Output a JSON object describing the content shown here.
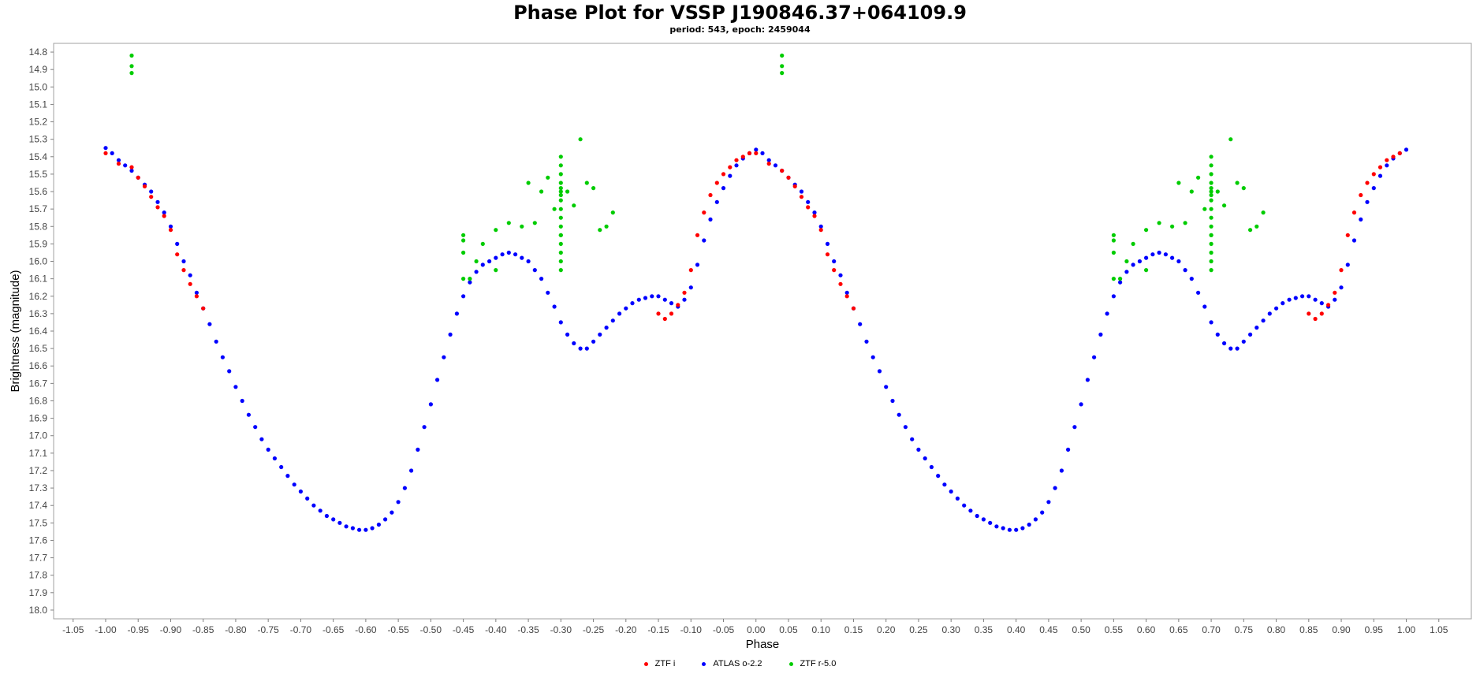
{
  "chart_data": {
    "type": "scatter",
    "title": "Phase Plot for VSSP J190846.37+064109.9",
    "subtitle": "period: 543, epoch: 2459044",
    "xlabel": "Phase",
    "ylabel": "Brightness (magnitude)",
    "xlim": [
      -1.08,
      1.1
    ],
    "ylim": [
      14.75,
      18.05
    ],
    "y_inverted": true,
    "grid": false,
    "legend_position": "bottom",
    "x_ticks": [
      "-1.05",
      "-1.00",
      "-0.95",
      "-0.90",
      "-0.85",
      "-0.80",
      "-0.75",
      "-0.70",
      "-0.65",
      "-0.60",
      "-0.55",
      "-0.50",
      "-0.45",
      "-0.40",
      "-0.35",
      "-0.30",
      "-0.25",
      "-0.20",
      "-0.15",
      "-0.10",
      "-0.05",
      "0.00",
      "0.05",
      "0.10",
      "0.15",
      "0.20",
      "0.25",
      "0.30",
      "0.35",
      "0.40",
      "0.45",
      "0.50",
      "0.55",
      "0.60",
      "0.65",
      "0.70",
      "0.75",
      "0.80",
      "0.85",
      "0.90",
      "0.95",
      "1.00",
      "1.05"
    ],
    "y_ticks": [
      "14.8",
      "14.9",
      "15.0",
      "15.1",
      "15.2",
      "15.3",
      "15.4",
      "15.5",
      "15.6",
      "15.7",
      "15.8",
      "15.9",
      "16.0",
      "16.1",
      "16.2",
      "16.3",
      "16.4",
      "16.5",
      "16.6",
      "16.7",
      "16.8",
      "16.9",
      "17.0",
      "17.1",
      "17.2",
      "17.3",
      "17.4",
      "17.5",
      "17.6",
      "17.7",
      "17.8",
      "17.9",
      "18.0"
    ],
    "series": [
      {
        "name": "ZTF i",
        "color": "#ff0000",
        "x": [
          -1.0,
          -0.98,
          -0.96,
          -0.95,
          -0.94,
          -0.93,
          -0.92,
          -0.91,
          -0.9,
          -0.89,
          -0.88,
          -0.87,
          -0.86,
          -0.85,
          0.0,
          0.02,
          0.04,
          0.05,
          0.06,
          0.07,
          0.08,
          0.09,
          0.1,
          0.11,
          0.12,
          0.13,
          0.14,
          0.15,
          -0.15,
          -0.14,
          -0.13,
          -0.12,
          -0.11,
          -0.1,
          -0.09,
          -0.08,
          -0.07,
          -0.06,
          -0.05,
          -0.04,
          -0.03,
          -0.02,
          -0.01,
          0.85,
          0.86,
          0.87,
          0.88,
          0.89,
          0.9,
          0.91,
          0.92,
          0.93,
          0.94,
          0.95,
          0.96,
          0.97,
          0.98,
          0.99
        ],
        "y": [
          15.38,
          15.44,
          15.46,
          15.52,
          15.57,
          15.63,
          15.69,
          15.74,
          15.82,
          15.96,
          16.05,
          16.13,
          16.2,
          16.27,
          15.38,
          15.44,
          15.48,
          15.52,
          15.57,
          15.63,
          15.69,
          15.74,
          15.82,
          15.96,
          16.05,
          16.13,
          16.2,
          16.27,
          16.3,
          16.33,
          16.3,
          16.25,
          16.18,
          16.05,
          15.85,
          15.72,
          15.62,
          15.55,
          15.5,
          15.46,
          15.42,
          15.4,
          15.38,
          16.3,
          16.33,
          16.3,
          16.25,
          16.18,
          16.05,
          15.85,
          15.72,
          15.62,
          15.55,
          15.5,
          15.46,
          15.42,
          15.4,
          15.38
        ]
      },
      {
        "name": "ATLAS o-2.2",
        "color": "#0000ff",
        "x": [
          -1.0,
          -0.99,
          -0.98,
          -0.97,
          -0.96,
          -0.95,
          -0.94,
          -0.93,
          -0.92,
          -0.91,
          -0.9,
          -0.89,
          -0.88,
          -0.87,
          -0.86,
          -0.85,
          -0.84,
          -0.83,
          -0.82,
          -0.81,
          -0.8,
          -0.79,
          -0.78,
          -0.77,
          -0.76,
          -0.75,
          -0.74,
          -0.73,
          -0.72,
          -0.71,
          -0.7,
          -0.69,
          -0.68,
          -0.67,
          -0.66,
          -0.65,
          -0.64,
          -0.63,
          -0.62,
          -0.61,
          -0.6,
          -0.59,
          -0.58,
          -0.57,
          -0.56,
          -0.55,
          -0.54,
          -0.53,
          -0.52,
          -0.51,
          -0.5,
          -0.49,
          -0.48,
          -0.47,
          -0.46,
          -0.45,
          -0.44,
          -0.43,
          -0.42,
          -0.41,
          -0.4,
          -0.39,
          -0.38,
          -0.37,
          -0.36,
          -0.35,
          -0.34,
          -0.33,
          -0.32,
          -0.31,
          -0.3,
          -0.29,
          -0.28,
          -0.27,
          -0.26,
          -0.25,
          -0.24,
          -0.23,
          -0.22,
          -0.21,
          -0.2,
          -0.19,
          -0.18,
          -0.17,
          -0.16,
          -0.15,
          -0.14,
          -0.13,
          -0.12,
          -0.11,
          -0.1,
          -0.09,
          -0.08,
          -0.07,
          -0.06,
          -0.05,
          -0.04,
          -0.03,
          -0.02,
          -0.01,
          0.0,
          0.01,
          0.02,
          0.03,
          0.04,
          0.05,
          0.06,
          0.07,
          0.08,
          0.09,
          0.1,
          0.11,
          0.12,
          0.13,
          0.14,
          0.15,
          0.16,
          0.17,
          0.18,
          0.19,
          0.2,
          0.21,
          0.22,
          0.23,
          0.24,
          0.25,
          0.26,
          0.27,
          0.28,
          0.29,
          0.3,
          0.31,
          0.32,
          0.33,
          0.34,
          0.35,
          0.36,
          0.37,
          0.38,
          0.39,
          0.4,
          0.41,
          0.42,
          0.43,
          0.44,
          0.45,
          0.46,
          0.47,
          0.48,
          0.49,
          0.5,
          0.51,
          0.52,
          0.53,
          0.54,
          0.55,
          0.56,
          0.57,
          0.58,
          0.59,
          0.6,
          0.61,
          0.62,
          0.63,
          0.64,
          0.65,
          0.66,
          0.67,
          0.68,
          0.69,
          0.7,
          0.71,
          0.72,
          0.73,
          0.74,
          0.75,
          0.76,
          0.77,
          0.78,
          0.79,
          0.8,
          0.81,
          0.82,
          0.83,
          0.84,
          0.85,
          0.86,
          0.87,
          0.88,
          0.89,
          0.9,
          0.91,
          0.92,
          0.93,
          0.94,
          0.95,
          0.96,
          0.97,
          0.98,
          0.99,
          1.0
        ],
        "y": [
          15.35,
          15.38,
          15.42,
          15.45,
          15.48,
          15.52,
          15.56,
          15.6,
          15.66,
          15.72,
          15.8,
          15.9,
          16.0,
          16.08,
          16.18,
          16.27,
          16.36,
          16.46,
          16.55,
          16.63,
          16.72,
          16.8,
          16.88,
          16.95,
          17.02,
          17.08,
          17.13,
          17.18,
          17.23,
          17.28,
          17.32,
          17.36,
          17.4,
          17.43,
          17.46,
          17.48,
          17.5,
          17.52,
          17.53,
          17.54,
          17.54,
          17.53,
          17.51,
          17.48,
          17.44,
          17.38,
          17.3,
          17.2,
          17.08,
          16.95,
          16.82,
          16.68,
          16.55,
          16.42,
          16.3,
          16.2,
          16.12,
          16.06,
          16.02,
          16.0,
          15.98,
          15.96,
          15.95,
          15.96,
          15.98,
          16.0,
          16.05,
          16.1,
          16.18,
          16.26,
          16.35,
          16.42,
          16.47,
          16.5,
          16.5,
          16.46,
          16.42,
          16.38,
          16.34,
          16.3,
          16.27,
          16.24,
          16.22,
          16.21,
          16.2,
          16.2,
          16.22,
          16.24,
          16.26,
          16.22,
          16.15,
          16.02,
          15.88,
          15.76,
          15.66,
          15.58,
          15.51,
          15.45,
          15.41,
          15.38,
          15.36,
          15.38,
          15.42,
          15.45,
          15.48,
          15.52,
          15.56,
          15.6,
          15.66,
          15.72,
          15.8,
          15.9,
          16.0,
          16.08,
          16.18,
          16.27,
          16.36,
          16.46,
          16.55,
          16.63,
          16.72,
          16.8,
          16.88,
          16.95,
          17.02,
          17.08,
          17.13,
          17.18,
          17.23,
          17.28,
          17.32,
          17.36,
          17.4,
          17.43,
          17.46,
          17.48,
          17.5,
          17.52,
          17.53,
          17.54,
          17.54,
          17.53,
          17.51,
          17.48,
          17.44,
          17.38,
          17.3,
          17.2,
          17.08,
          16.95,
          16.82,
          16.68,
          16.55,
          16.42,
          16.3,
          16.2,
          16.12,
          16.06,
          16.02,
          16.0,
          15.98,
          15.96,
          15.95,
          15.96,
          15.98,
          16.0,
          16.05,
          16.1,
          16.18,
          16.26,
          16.35,
          16.42,
          16.47,
          16.5,
          16.5,
          16.46,
          16.42,
          16.38,
          16.34,
          16.3,
          16.27,
          16.24,
          16.22,
          16.21,
          16.2,
          16.2,
          16.22,
          16.24,
          16.26,
          16.22,
          16.15,
          16.02,
          15.88,
          15.76,
          15.66,
          15.58,
          15.51,
          15.45,
          15.41,
          15.38,
          15.36
        ]
      },
      {
        "name": "ZTF r-5.0",
        "color": "#00cc00",
        "x": [
          -0.96,
          -0.96,
          -0.96,
          -0.45,
          -0.45,
          -0.45,
          -0.45,
          -0.44,
          -0.43,
          -0.42,
          -0.4,
          -0.4,
          -0.38,
          -0.36,
          -0.35,
          -0.34,
          -0.33,
          -0.32,
          -0.31,
          -0.3,
          -0.3,
          -0.3,
          -0.3,
          -0.3,
          -0.3,
          -0.3,
          -0.3,
          -0.3,
          -0.3,
          -0.3,
          -0.3,
          -0.3,
          -0.3,
          -0.3,
          -0.3,
          -0.3,
          -0.29,
          -0.28,
          -0.27,
          -0.26,
          -0.25,
          -0.24,
          -0.23,
          -0.22,
          0.04,
          0.04,
          0.04,
          0.55,
          0.55,
          0.55,
          0.55,
          0.56,
          0.57,
          0.58,
          0.6,
          0.6,
          0.62,
          0.64,
          0.65,
          0.66,
          0.67,
          0.68,
          0.69,
          0.7,
          0.7,
          0.7,
          0.7,
          0.7,
          0.7,
          0.7,
          0.7,
          0.7,
          0.7,
          0.7,
          0.7,
          0.7,
          0.7,
          0.7,
          0.7,
          0.7,
          0.71,
          0.72,
          0.73,
          0.74,
          0.75,
          0.76,
          0.77,
          0.78
        ],
        "y": [
          14.82,
          14.88,
          14.92,
          15.85,
          15.88,
          15.95,
          16.1,
          16.1,
          16.0,
          15.9,
          15.82,
          16.05,
          15.78,
          15.8,
          15.55,
          15.78,
          15.6,
          15.52,
          15.7,
          15.4,
          15.45,
          15.5,
          15.55,
          15.6,
          15.65,
          15.7,
          15.75,
          15.8,
          15.85,
          15.9,
          15.95,
          16.0,
          16.05,
          15.62,
          15.58,
          15.85,
          15.6,
          15.68,
          15.3,
          15.55,
          15.58,
          15.82,
          15.8,
          15.72,
          14.82,
          14.88,
          14.92,
          15.85,
          15.88,
          15.95,
          16.1,
          16.1,
          16.0,
          15.9,
          15.82,
          16.05,
          15.78,
          15.8,
          15.55,
          15.78,
          15.6,
          15.52,
          15.7,
          15.4,
          15.45,
          15.5,
          15.55,
          15.6,
          15.65,
          15.7,
          15.75,
          15.8,
          15.85,
          15.9,
          15.95,
          16.0,
          16.05,
          15.62,
          15.58,
          15.85,
          15.6,
          15.68,
          15.3,
          15.55,
          15.58,
          15.82,
          15.8,
          15.72
        ]
      }
    ]
  }
}
